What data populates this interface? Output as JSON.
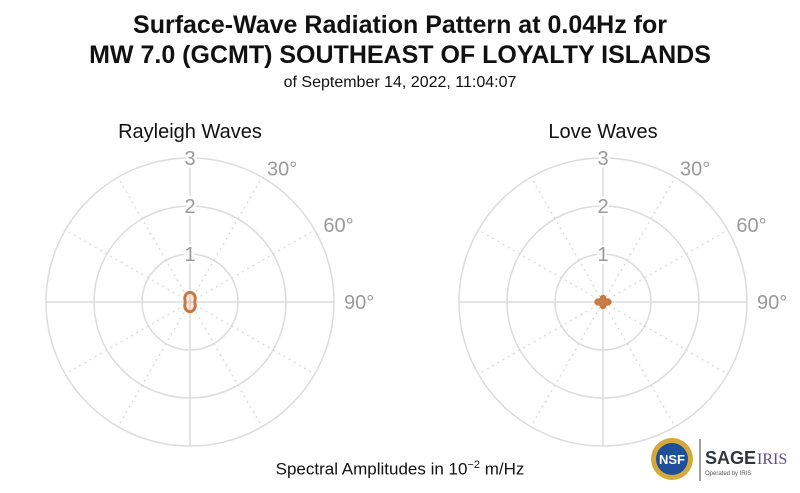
{
  "header": {
    "title_line1": "Surface-Wave Radiation Pattern at 0.04Hz for",
    "title_line2": "MW 7.0 (GCMT) SOUTHEAST OF LOYALTY ISLANDS",
    "subtitle": "of September 14, 2022, 11:04:07"
  },
  "footer": {
    "label_prefix": "Spectral Amplitudes in 10",
    "label_exponent": "−2",
    "label_suffix": " m/Hz"
  },
  "logo": {
    "nsf_text": "NSF",
    "sage_text": "SAGE",
    "iris_text": "IRIS",
    "operated_text": "Operated by IRIS"
  },
  "colors": {
    "pattern": "#c87941",
    "grid": "#dcdcdc",
    "axis_text": "#9a9a9a"
  },
  "chart_data": [
    {
      "type": "polar",
      "title": "Rayleigh Waves",
      "r_ticks": [
        "1",
        "2",
        "3"
      ],
      "r_max": 3,
      "angle_ticks": [
        "30°",
        "60°",
        "90°"
      ],
      "grid": true,
      "pattern": {
        "shape": "two-lobe",
        "radius_at_0deg": 0.2,
        "radius_at_90deg": 0.1,
        "radius_at_180deg": 0.2,
        "radius_at_270deg": 0.1
      }
    },
    {
      "type": "polar",
      "title": "Love Waves",
      "r_ticks": [
        "1",
        "2",
        "3"
      ],
      "r_max": 3,
      "angle_ticks": [
        "30°",
        "60°",
        "90°"
      ],
      "grid": true,
      "pattern": {
        "shape": "four-lobe",
        "radius_at_0deg": 0.12,
        "radius_at_45deg": 0.07,
        "radius_at_90deg": 0.15,
        "radius_at_135deg": 0.07,
        "radius_at_180deg": 0.12,
        "radius_at_225deg": 0.07,
        "radius_at_270deg": 0.15,
        "radius_at_315deg": 0.07
      }
    }
  ]
}
